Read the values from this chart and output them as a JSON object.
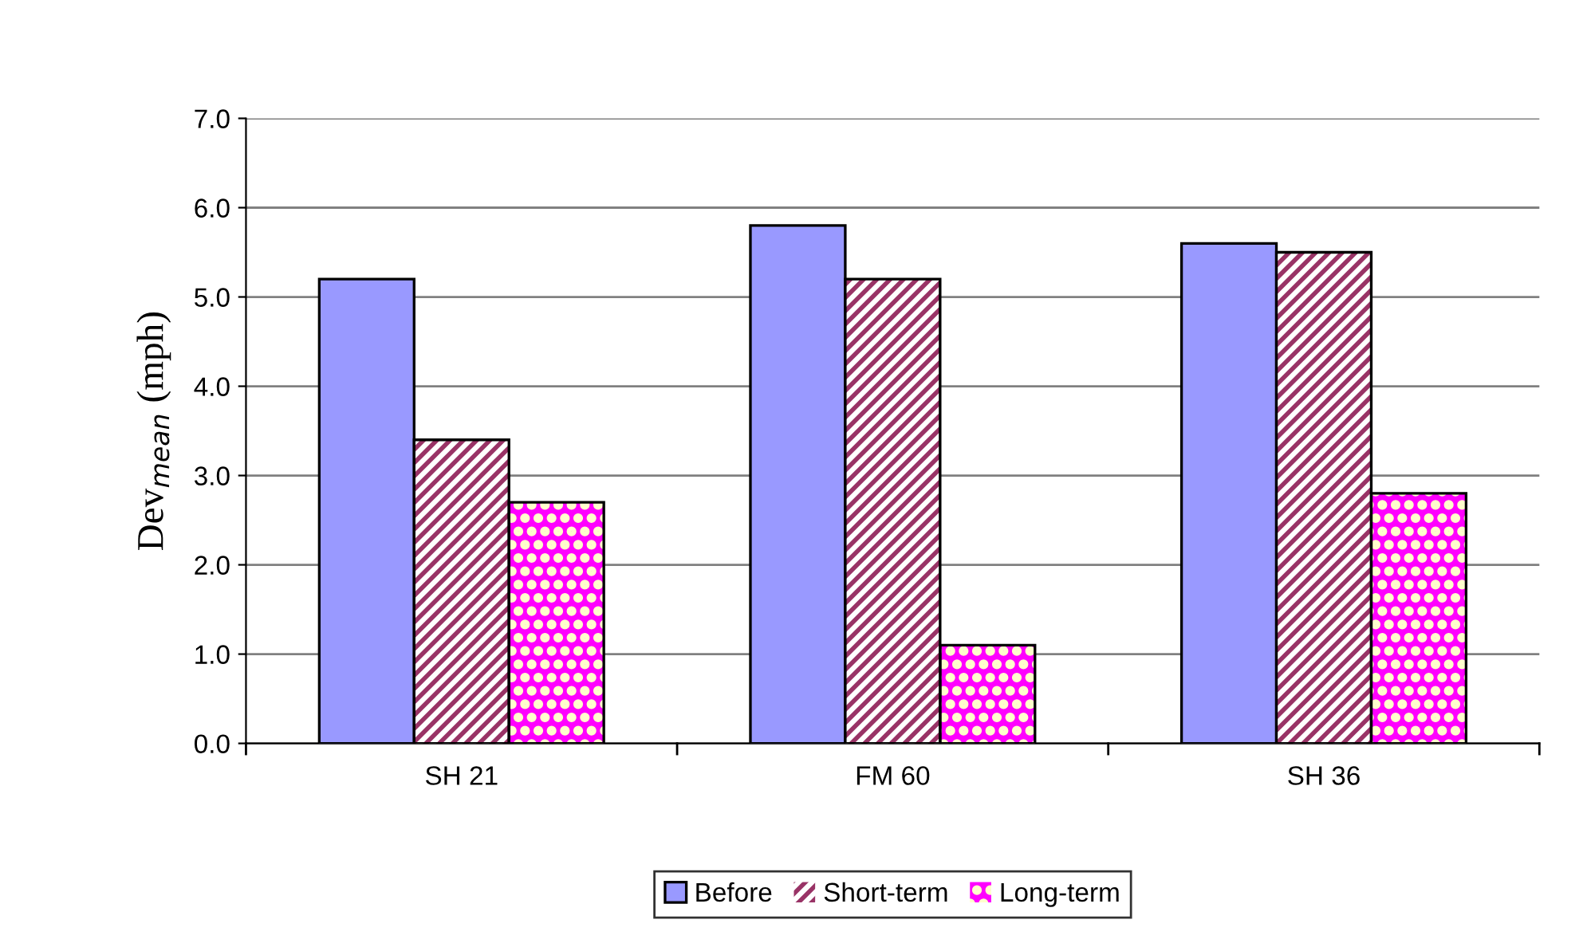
{
  "chart_data": {
    "type": "bar",
    "ylabel": "Dev$_{mean}$ (mph)",
    "categories": [
      "SH 21",
      "FM 60",
      "SH 36"
    ],
    "series": [
      {
        "name": "Before",
        "color": "#9999ff",
        "values": [
          5.2,
          5.8,
          5.6
        ]
      },
      {
        "name": "Short-term",
        "color": "#993366",
        "values": [
          3.4,
          5.2,
          5.5
        ]
      },
      {
        "name": "Long-term",
        "color": "#ff00ff",
        "values": [
          2.7,
          1.1,
          2.8
        ]
      }
    ],
    "ylim": [
      0,
      7
    ],
    "yticks": [
      {
        "value": 0,
        "label": "0.0"
      },
      {
        "value": 1,
        "label": "1.0"
      },
      {
        "value": 2,
        "label": "2.0"
      },
      {
        "value": 3,
        "label": "3.0"
      },
      {
        "value": 4,
        "label": "4.0"
      },
      {
        "value": 5,
        "label": "5.0"
      },
      {
        "value": 6,
        "label": "6.0"
      },
      {
        "value": 7,
        "label": "7.0"
      }
    ],
    "grid": "y",
    "legend": "bottom"
  }
}
